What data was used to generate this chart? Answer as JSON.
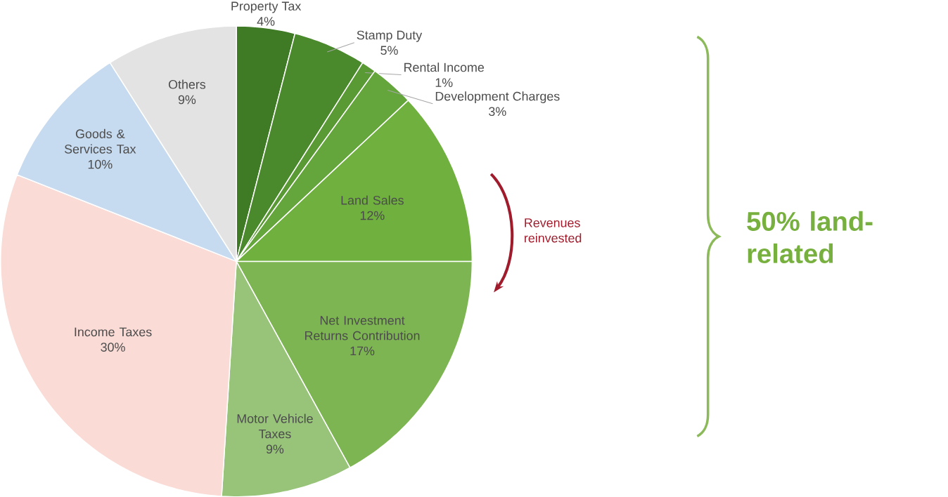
{
  "chart_data": {
    "type": "pie",
    "categories": [
      "Property Tax",
      "Stamp Duty",
      "Rental Income",
      "Development Charges",
      "Land Sales",
      "Net Investment Returns Contribution",
      "Motor Vehicle Taxes",
      "Income Taxes",
      "Goods & Services Tax",
      "Others"
    ],
    "values": [
      4,
      5,
      1,
      3,
      12,
      17,
      9,
      30,
      10,
      9
    ],
    "value_labels": [
      "4%",
      "5%",
      "1%",
      "3%",
      "12%",
      "17%",
      "9%",
      "30%",
      "10%",
      "9%"
    ],
    "colors": [
      "#3f7a25",
      "#4a8a2c",
      "#5a9a35",
      "#64a63c",
      "#6fb03f",
      "#7db552",
      "#98c47a",
      "#fadbd6",
      "#c6daf0",
      "#e3e3e3"
    ],
    "annotations": [
      "Revenues reinvested",
      "50% land-related"
    ]
  }
}
